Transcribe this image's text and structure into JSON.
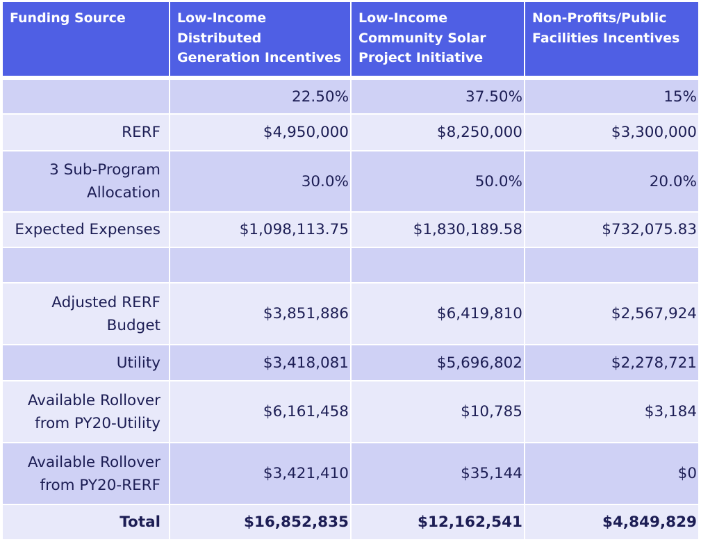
{
  "table": {
    "headers": [
      "Funding Source",
      "Low-Income Distributed Generation Incentives",
      "Low-Income Community Solar Project Initiative",
      "Non-Profits/Public Facilities Incentives"
    ],
    "rows": [
      {
        "label": "",
        "values": [
          "22.50%",
          "37.50%",
          "15%"
        ]
      },
      {
        "label": "RERF",
        "values": [
          "$4,950,000",
          "$8,250,000",
          "$3,300,000"
        ]
      },
      {
        "label": "3 Sub-Program Allocation",
        "values": [
          "30.0%",
          "50.0%",
          "20.0%"
        ]
      },
      {
        "label": "Expected Expenses",
        "values": [
          "$1,098,113.75",
          "$1,830,189.58",
          "$732,075.83"
        ]
      },
      {
        "label": "",
        "values": [
          "",
          "",
          ""
        ]
      },
      {
        "label": "Adjusted RERF Budget",
        "values": [
          "$3,851,886",
          "$6,419,810",
          "$2,567,924"
        ]
      },
      {
        "label": "Utility",
        "values": [
          "$3,418,081",
          "$5,696,802",
          "$2,278,721"
        ]
      },
      {
        "label": "Available Rollover from PY20-Utility",
        "values": [
          "$6,161,458",
          "$10,785",
          "$3,184"
        ]
      },
      {
        "label": "Available Rollover from PY20-RERF",
        "values": [
          "$3,421,410",
          "$35,144",
          "$0"
        ]
      },
      {
        "label": "Total",
        "values": [
          "$16,852,835",
          "$12,162,541",
          "$4,849,829"
        ]
      }
    ]
  },
  "colors": {
    "header_bg": "#4f5fe4",
    "row_dark": "#cfd1f5",
    "row_light": "#e8e9fa",
    "text": "#1c1d54"
  }
}
